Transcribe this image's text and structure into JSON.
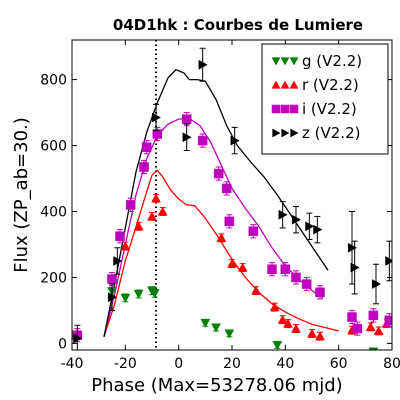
{
  "chart_data": {
    "type": "scatter",
    "title": "04D1hk : Courbes de Lumiere",
    "xlabel": "Phase (Max=53278.06 mjd)",
    "ylabel": "Flux (ZP_ab=30.)",
    "xlim": [
      -40,
      80
    ],
    "ylim": [
      -20,
      920
    ],
    "xticks": [
      -40,
      -20,
      0,
      20,
      40,
      60,
      80
    ],
    "yticks": [
      0,
      200,
      400,
      600,
      800
    ],
    "vline_x": -8.5,
    "legend": {
      "placement": "top-right"
    },
    "series": [
      {
        "name": "g (V2.2)",
        "marker": "triangle-down",
        "color": "#008000",
        "points": [
          {
            "x": -25,
            "y": 158,
            "e": 12
          },
          {
            "x": -20,
            "y": 138,
            "e": 12
          },
          {
            "x": -15,
            "y": 150,
            "e": 12
          },
          {
            "x": -10,
            "y": 160,
            "e": 12
          },
          {
            "x": -9,
            "y": 152,
            "e": 12
          },
          {
            "x": 10,
            "y": 62,
            "e": 10
          },
          {
            "x": 14,
            "y": 48,
            "e": 10
          },
          {
            "x": 19,
            "y": 30,
            "e": 10
          },
          {
            "x": 37,
            "y": -5,
            "e": 10
          },
          {
            "x": 73,
            "y": -25,
            "e": 10
          }
        ],
        "curve": []
      },
      {
        "name": "r (V2.2)",
        "marker": "triangle-up",
        "color": "#ff0000",
        "points": [
          {
            "x": -20,
            "y": 295,
            "e": 12
          },
          {
            "x": -15,
            "y": 355,
            "e": 12
          },
          {
            "x": -10,
            "y": 385,
            "e": 12
          },
          {
            "x": -8.5,
            "y": 440,
            "e": 12
          },
          {
            "x": -6,
            "y": 400,
            "e": 12
          },
          {
            "x": 16,
            "y": 320,
            "e": 12
          },
          {
            "x": 20,
            "y": 242,
            "e": 12
          },
          {
            "x": 24,
            "y": 230,
            "e": 12
          },
          {
            "x": 29,
            "y": 160,
            "e": 12
          },
          {
            "x": 36,
            "y": 110,
            "e": 12
          },
          {
            "x": 39,
            "y": 72,
            "e": 12
          },
          {
            "x": 41,
            "y": 60,
            "e": 12
          },
          {
            "x": 44,
            "y": 45,
            "e": 12
          },
          {
            "x": 50,
            "y": 30,
            "e": 12
          },
          {
            "x": 53,
            "y": 22,
            "e": 12
          },
          {
            "x": 65,
            "y": 40,
            "e": 12
          },
          {
            "x": 72,
            "y": 50,
            "e": 12
          },
          {
            "x": 75,
            "y": 38,
            "e": 12
          },
          {
            "x": 78,
            "y": 60,
            "e": 12
          }
        ],
        "curve": [
          {
            "x": -28,
            "y": 20
          },
          {
            "x": -24,
            "y": 120
          },
          {
            "x": -20,
            "y": 250
          },
          {
            "x": -15,
            "y": 380
          },
          {
            "x": -12,
            "y": 460
          },
          {
            "x": -10,
            "y": 510
          },
          {
            "x": -8,
            "y": 525
          },
          {
            "x": -6,
            "y": 505
          },
          {
            "x": -3,
            "y": 465
          },
          {
            "x": 0,
            "y": 438
          },
          {
            "x": 3,
            "y": 420
          },
          {
            "x": 6,
            "y": 418
          },
          {
            "x": 10,
            "y": 380
          },
          {
            "x": 15,
            "y": 320
          },
          {
            "x": 20,
            "y": 255
          },
          {
            "x": 25,
            "y": 200
          },
          {
            "x": 30,
            "y": 155
          },
          {
            "x": 35,
            "y": 120
          },
          {
            "x": 40,
            "y": 95
          },
          {
            "x": 45,
            "y": 75
          },
          {
            "x": 50,
            "y": 58
          },
          {
            "x": 55,
            "y": 48
          },
          {
            "x": 60,
            "y": 38
          }
        ]
      },
      {
        "name": "i (V2.2)",
        "marker": "square",
        "color": "#bf00bf",
        "points": [
          {
            "x": -38,
            "y": 25,
            "e": 20
          },
          {
            "x": -25,
            "y": 195,
            "e": 20
          },
          {
            "x": -22,
            "y": 325,
            "e": 20
          },
          {
            "x": -18,
            "y": 420,
            "e": 20
          },
          {
            "x": -13,
            "y": 535,
            "e": 20
          },
          {
            "x": -12,
            "y": 595,
            "e": 20
          },
          {
            "x": -8,
            "y": 635,
            "e": 20
          },
          {
            "x": 3,
            "y": 680,
            "e": 20
          },
          {
            "x": 9,
            "y": 615,
            "e": 20
          },
          {
            "x": 15,
            "y": 515,
            "e": 20
          },
          {
            "x": 18,
            "y": 470,
            "e": 20
          },
          {
            "x": 19,
            "y": 370,
            "e": 20
          },
          {
            "x": 28,
            "y": 340,
            "e": 20
          },
          {
            "x": 35,
            "y": 225,
            "e": 20
          },
          {
            "x": 40,
            "y": 225,
            "e": 20
          },
          {
            "x": 44,
            "y": 200,
            "e": 20
          },
          {
            "x": 48,
            "y": 180,
            "e": 20
          },
          {
            "x": 53,
            "y": 155,
            "e": 20
          },
          {
            "x": 65,
            "y": 80,
            "e": 20
          },
          {
            "x": 67,
            "y": 45,
            "e": 20
          },
          {
            "x": 73,
            "y": 85,
            "e": 20
          },
          {
            "x": 79,
            "y": 70,
            "e": 20
          }
        ],
        "curve": [
          {
            "x": -28,
            "y": 20
          },
          {
            "x": -24,
            "y": 150
          },
          {
            "x": -20,
            "y": 300
          },
          {
            "x": -16,
            "y": 450
          },
          {
            "x": -12,
            "y": 560
          },
          {
            "x": -8,
            "y": 630
          },
          {
            "x": -4,
            "y": 665
          },
          {
            "x": 0,
            "y": 680
          },
          {
            "x": 4,
            "y": 682
          },
          {
            "x": 8,
            "y": 660
          },
          {
            "x": 12,
            "y": 610
          },
          {
            "x": 16,
            "y": 540
          },
          {
            "x": 20,
            "y": 470
          },
          {
            "x": 25,
            "y": 410
          },
          {
            "x": 30,
            "y": 355
          },
          {
            "x": 35,
            "y": 290
          },
          {
            "x": 40,
            "y": 235
          },
          {
            "x": 45,
            "y": 195
          },
          {
            "x": 50,
            "y": 160
          },
          {
            "x": 54,
            "y": 138
          }
        ]
      },
      {
        "name": "z (V2.2)",
        "marker": "triangle-right",
        "color": "#000000",
        "points": [
          {
            "x": -38,
            "y": 15,
            "e": 40
          },
          {
            "x": -25,
            "y": 140,
            "e": 40
          },
          {
            "x": -23,
            "y": 250,
            "e": 40
          },
          {
            "x": -8.5,
            "y": 685,
            "e": 40
          },
          {
            "x": 3,
            "y": 625,
            "e": 40
          },
          {
            "x": 9,
            "y": 845,
            "e": 50
          },
          {
            "x": 21,
            "y": 615,
            "e": 40
          },
          {
            "x": 39,
            "y": 390,
            "e": 40
          },
          {
            "x": 44,
            "y": 375,
            "e": 40
          },
          {
            "x": 49,
            "y": 355,
            "e": 40
          },
          {
            "x": 52,
            "y": 345,
            "e": 40
          },
          {
            "x": 65,
            "y": 290,
            "e": 110
          },
          {
            "x": 66,
            "y": 230,
            "e": 80
          },
          {
            "x": 74,
            "y": 180,
            "e": 60
          },
          {
            "x": 79,
            "y": 250,
            "e": 60
          }
        ],
        "curve": [
          {
            "x": -28,
            "y": 20
          },
          {
            "x": -24,
            "y": 180
          },
          {
            "x": -20,
            "y": 350
          },
          {
            "x": -16,
            "y": 520
          },
          {
            "x": -12,
            "y": 640
          },
          {
            "x": -8,
            "y": 730
          },
          {
            "x": -4,
            "y": 805
          },
          {
            "x": -1,
            "y": 830
          },
          {
            "x": 2,
            "y": 820
          },
          {
            "x": 4,
            "y": 800
          },
          {
            "x": 7,
            "y": 800
          },
          {
            "x": 10,
            "y": 795
          },
          {
            "x": 14,
            "y": 740
          },
          {
            "x": 18,
            "y": 660
          },
          {
            "x": 22,
            "y": 600
          },
          {
            "x": 27,
            "y": 550
          },
          {
            "x": 32,
            "y": 505
          },
          {
            "x": 37,
            "y": 450
          },
          {
            "x": 42,
            "y": 390
          },
          {
            "x": 47,
            "y": 330
          },
          {
            "x": 52,
            "y": 270
          },
          {
            "x": 56,
            "y": 222
          }
        ]
      }
    ]
  }
}
